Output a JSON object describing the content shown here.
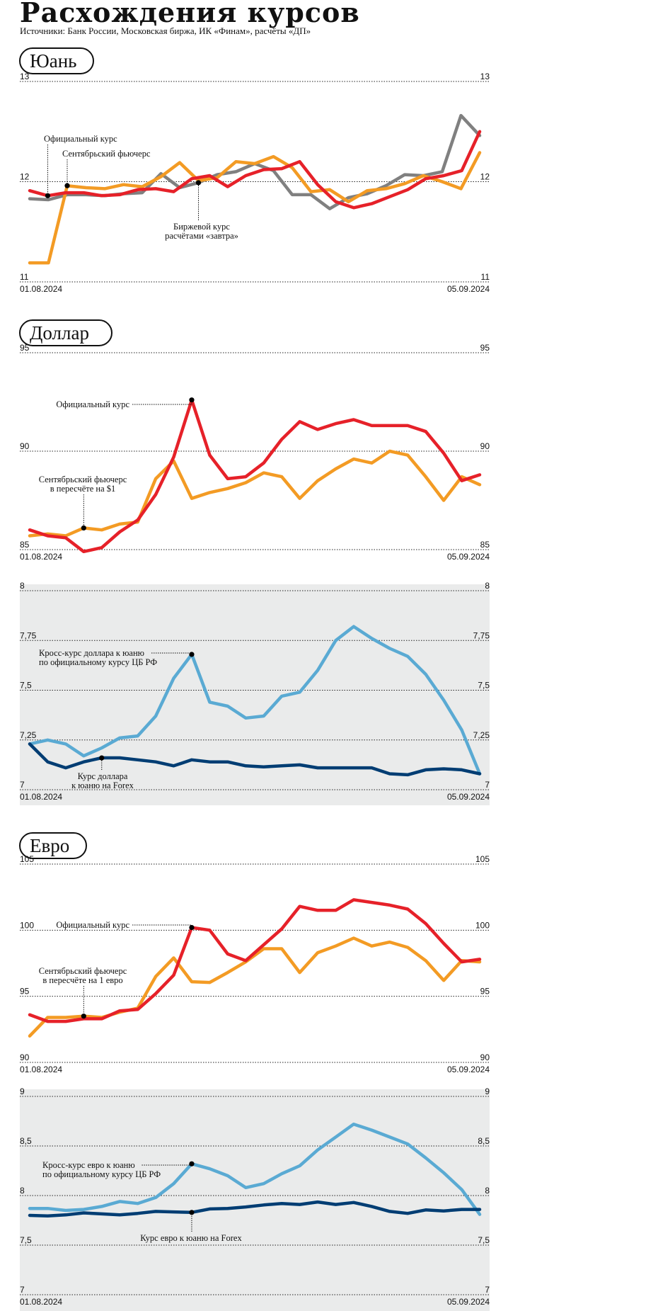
{
  "title": "Расхождения курсов",
  "subtitle": "Источники: Банк России, Московская биржа, ИК «Финам», расчёты «ДП»",
  "colors": {
    "official": "#e62129",
    "futures": "#f39b24",
    "exchange": "#808080",
    "cross": "#5aaad3",
    "forex": "#003d73",
    "panel": "#eaebeb",
    "grid": "#222222"
  },
  "chart_data": [
    {
      "id": "yuan",
      "type": "line",
      "section_label": "Юань",
      "x_start": "01.08.2024",
      "x_end": "05.09.2024",
      "ylim": [
        11,
        13
      ],
      "yticks": [
        "11",
        "12",
        "13"
      ],
      "panel": false,
      "series": [
        {
          "name": "Биржевой курс расчётами «завтра»",
          "color": "#808080",
          "values": [
            11.83,
            11.82,
            11.87,
            11.87,
            11.86,
            11.88,
            11.89,
            12.08,
            11.94,
            11.99,
            12.07,
            12.1,
            12.18,
            12.11,
            11.87,
            11.87,
            11.73,
            11.84,
            11.88,
            11.96,
            12.07,
            12.06,
            12.1,
            12.66,
            12.46
          ]
        },
        {
          "name": "Сентябрьский фьючерс",
          "color": "#f39b24",
          "values": [
            11.19,
            11.19,
            11.96,
            11.94,
            11.93,
            11.97,
            11.95,
            12.05,
            12.19,
            12.01,
            12.04,
            12.2,
            12.18,
            12.25,
            12.14,
            11.9,
            11.92,
            11.8,
            11.91,
            11.93,
            11.98,
            12.06,
            12,
            11.93,
            12.29
          ]
        },
        {
          "name": "Официальный курс",
          "color": "#e62129",
          "values": [
            11.91,
            11.86,
            11.89,
            11.89,
            11.86,
            11.87,
            11.92,
            11.93,
            11.9,
            12.03,
            12.06,
            11.95,
            12.06,
            12.12,
            12.13,
            12.2,
            11.97,
            11.8,
            11.74,
            11.78,
            11.85,
            11.92,
            12.03,
            12.06,
            12.11,
            12.5
          ]
        }
      ],
      "annotations": [
        {
          "lines": [
            "Официальный курс"
          ]
        },
        {
          "lines": [
            "Сентябрьский фьючерс"
          ]
        },
        {
          "lines": [
            "Биржевой курс",
            "расчётами «завтра»"
          ]
        }
      ]
    },
    {
      "id": "dollar",
      "type": "line",
      "section_label": "Доллар",
      "x_start": "01.08.2024",
      "x_end": "05.09.2024",
      "ylim": [
        85,
        95
      ],
      "yticks": [
        "85",
        "90",
        "95"
      ],
      "panel": false,
      "series": [
        {
          "name": "Сентябрьский фьючерс в пересчёте на $1",
          "color": "#f39b24",
          "values": [
            85.7,
            85.8,
            85.7,
            86.1,
            86,
            86.3,
            86.4,
            88.6,
            89.5,
            87.6,
            87.9,
            88.1,
            88.4,
            88.9,
            88.7,
            87.6,
            88.5,
            89.1,
            89.6,
            89.4,
            90,
            89.8,
            88.7,
            87.5,
            88.7,
            88.3
          ]
        },
        {
          "name": "Официальный курс",
          "color": "#e62129",
          "values": [
            86,
            85.7,
            85.6,
            84.9,
            85.1,
            85.9,
            86.5,
            87.8,
            89.7,
            92.6,
            89.8,
            88.6,
            88.7,
            89.4,
            90.6,
            91.5,
            91.1,
            91.4,
            91.6,
            91.3,
            91.3,
            91.3,
            91,
            89.9,
            88.5,
            88.8
          ]
        }
      ],
      "annotations": [
        {
          "lines": [
            "Официальный курс"
          ]
        },
        {
          "lines": [
            "Сентябрьский фьючерс",
            "в пересчёте на $1"
          ]
        }
      ]
    },
    {
      "id": "cross_usd_cny",
      "type": "line",
      "section_label": "",
      "x_start": "01.08.2024",
      "x_end": "05.09.2024",
      "ylim": [
        7,
        8
      ],
      "yticks": [
        "7",
        "7,25",
        "7,5",
        "7,75",
        "8"
      ],
      "panel": true,
      "series": [
        {
          "name": "Кросс-курс доллара к юаню по официальному курсу ЦБ РФ",
          "color": "#5aaad3",
          "values": [
            7.23,
            7.25,
            7.23,
            7.17,
            7.21,
            7.26,
            7.27,
            7.37,
            7.56,
            7.68,
            7.44,
            7.42,
            7.36,
            7.37,
            7.47,
            7.49,
            7.6,
            7.75,
            7.82,
            7.76,
            7.71,
            7.67,
            7.58,
            7.45,
            7.3,
            7.08
          ]
        },
        {
          "name": "Курс доллара к юаню на Forex",
          "color": "#003d73",
          "values": [
            7.23,
            7.14,
            7.11,
            7.14,
            7.16,
            7.16,
            7.15,
            7.14,
            7.12,
            7.15,
            7.14,
            7.14,
            7.12,
            7.115,
            7.12,
            7.125,
            7.11,
            7.11,
            7.11,
            7.11,
            7.08,
            7.075,
            7.1,
            7.105,
            7.1,
            7.08
          ]
        }
      ],
      "annotations": [
        {
          "lines": [
            "Кросс-курс доллара к юаню",
            "по официальному курсу ЦБ РФ"
          ]
        },
        {
          "lines": [
            "Курс доллара",
            "к юаню на Forex"
          ]
        }
      ]
    },
    {
      "id": "euro",
      "type": "line",
      "section_label": "Евро",
      "x_start": "01.08.2024",
      "x_end": "05.09.2024",
      "ylim": [
        90,
        105
      ],
      "yticks": [
        "90",
        "95",
        "100",
        "105"
      ],
      "panel": false,
      "series": [
        {
          "name": "Сентябрьский фьючерс в пересчёте на 1 евро",
          "color": "#f39b24",
          "values": [
            92,
            93.4,
            93.4,
            93.5,
            93.4,
            93.8,
            94.1,
            96.5,
            97.9,
            96.1,
            96.05,
            96.8,
            97.6,
            98.6,
            98.6,
            96.8,
            98.3,
            98.8,
            99.4,
            98.8,
            99.1,
            98.7,
            97.7,
            96.2,
            97.7,
            97.6
          ]
        },
        {
          "name": "Официальный курс",
          "color": "#e62129",
          "values": [
            93.6,
            93.1,
            93.1,
            93.3,
            93.3,
            93.9,
            94,
            95.2,
            96.6,
            100.2,
            100,
            98.2,
            97.7,
            98.9,
            100.1,
            101.8,
            101.5,
            101.5,
            102.3,
            102.1,
            101.9,
            101.6,
            100.5,
            99,
            97.6,
            97.8
          ]
        }
      ],
      "annotations": [
        {
          "lines": [
            "Официальный курс"
          ]
        },
        {
          "lines": [
            "Сентябрьский фьючерс",
            "в пересчёте на 1 евро"
          ]
        }
      ]
    },
    {
      "id": "cross_eur_cny",
      "type": "line",
      "section_label": "",
      "x_start": "01.08.2024",
      "x_end": "05.09.2024",
      "ylim": [
        7,
        9
      ],
      "yticks": [
        "7",
        "7,5",
        "8",
        "8,5",
        "9"
      ],
      "panel": true,
      "series": [
        {
          "name": "Кросс-курс евро к юаню по официальному курсу ЦБ РФ",
          "color": "#5aaad3",
          "values": [
            7.87,
            7.87,
            7.85,
            7.86,
            7.89,
            7.94,
            7.92,
            7.98,
            8.12,
            8.32,
            8.27,
            8.2,
            8.08,
            8.12,
            8.22,
            8.3,
            8.46,
            8.59,
            8.72,
            8.66,
            8.59,
            8.52,
            8.38,
            8.23,
            8.06,
            7.81
          ]
        },
        {
          "name": "Курс евро к юаню на Forex",
          "color": "#003d73",
          "values": [
            7.8,
            7.795,
            7.805,
            7.825,
            7.815,
            7.805,
            7.82,
            7.84,
            7.835,
            7.83,
            7.865,
            7.87,
            7.885,
            7.905,
            7.92,
            7.91,
            7.935,
            7.91,
            7.93,
            7.89,
            7.84,
            7.82,
            7.855,
            7.845,
            7.86,
            7.86
          ]
        }
      ],
      "annotations": [
        {
          "lines": [
            "Кросс-курс евро к юаню",
            "по официальному курсу ЦБ РФ"
          ]
        },
        {
          "lines": [
            "Курс евро к юаню на Forex"
          ]
        }
      ]
    }
  ]
}
